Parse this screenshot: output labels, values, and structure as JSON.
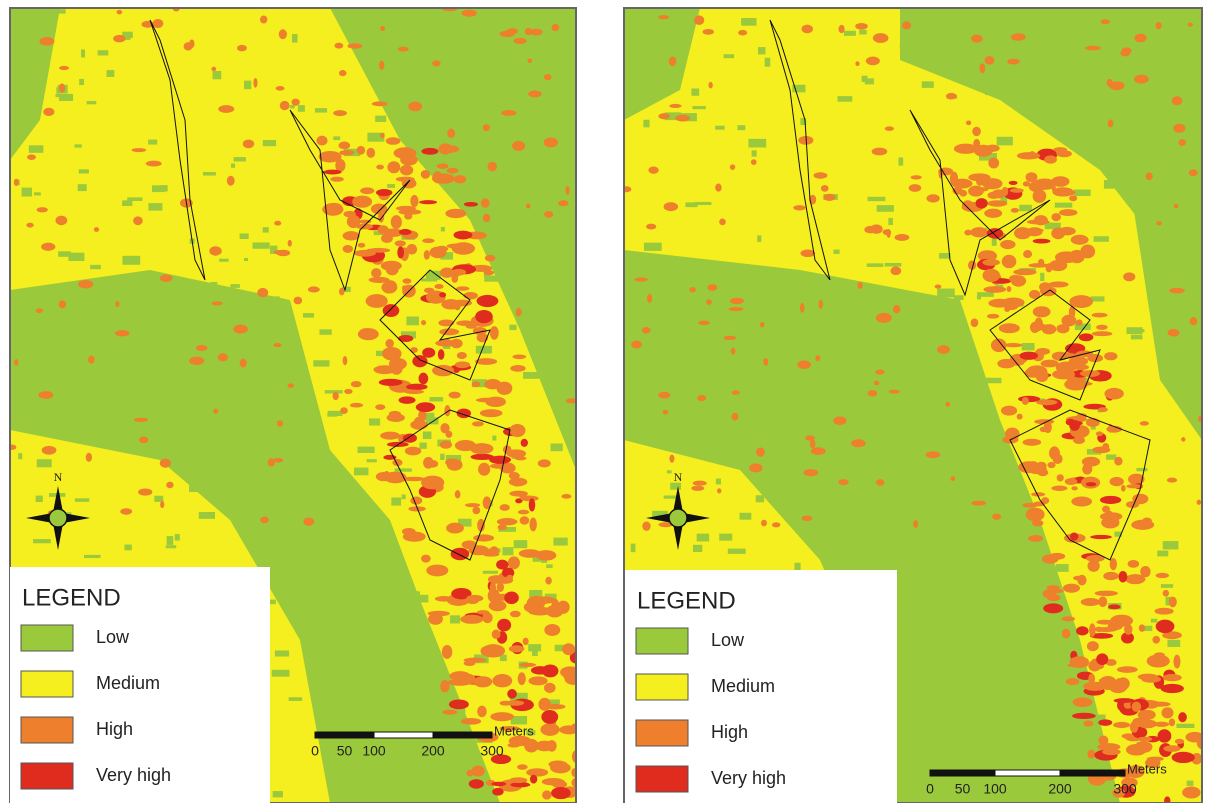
{
  "panels": [
    {
      "north": "N",
      "legend": {
        "title": "LEGEND",
        "items": [
          {
            "label": "Low",
            "color": "#9bc93c"
          },
          {
            "label": "Medium",
            "color": "#f6ef1f"
          },
          {
            "label": "High",
            "color": "#ee7f2c"
          },
          {
            "label": "Very high",
            "color": "#df2c1f"
          }
        ]
      },
      "scale_bar": {
        "unit": "Meters",
        "ticks": [
          0,
          50,
          100,
          200,
          300
        ]
      }
    },
    {
      "north": "N",
      "legend": {
        "title": "LEGEND",
        "items": [
          {
            "label": "Low",
            "color": "#9bc93c"
          },
          {
            "label": "Medium",
            "color": "#f6ef1f"
          },
          {
            "label": "High",
            "color": "#ee7f2c"
          },
          {
            "label": "Very high",
            "color": "#df2c1f"
          }
        ]
      },
      "scale_bar": {
        "unit": "Meters",
        "ticks": [
          0,
          50,
          100,
          200,
          300
        ]
      }
    }
  ]
}
